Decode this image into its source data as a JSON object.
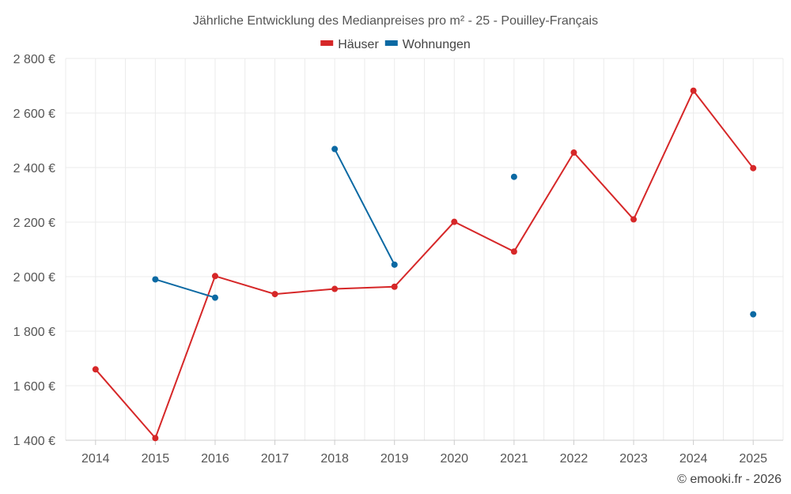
{
  "chart_data": {
    "type": "line",
    "title": "Jährliche Entwicklung des Medianpreises pro m² - 25 - Pouilley-Français",
    "categories": [
      "2014",
      "2015",
      "2016",
      "2017",
      "2018",
      "2019",
      "2020",
      "2021",
      "2022",
      "2023",
      "2024",
      "2025"
    ],
    "ylim": [
      1400,
      2800
    ],
    "yticks": [
      1400,
      1600,
      1800,
      2000,
      2200,
      2400,
      2600,
      2800
    ],
    "ytick_labels": [
      "1 400 €",
      "1 600 €",
      "1 800 €",
      "2 000 €",
      "2 200 €",
      "2 400 €",
      "2 600 €",
      "2 800 €"
    ],
    "legend_position": "top-center",
    "grid": true,
    "series": [
      {
        "name": "Häuser",
        "color": "#d62728",
        "values": [
          1660,
          1408,
          2002,
          1936,
          1955,
          1963,
          2201,
          2092,
          2455,
          2210,
          2682,
          2398
        ]
      },
      {
        "name": "Wohnungen",
        "color": "#0b69a3",
        "values": [
          null,
          1990,
          1923,
          null,
          2468,
          2044,
          null,
          2366,
          null,
          null,
          null,
          1862
        ]
      }
    ]
  },
  "credit": "© emooki.fr - 2026"
}
